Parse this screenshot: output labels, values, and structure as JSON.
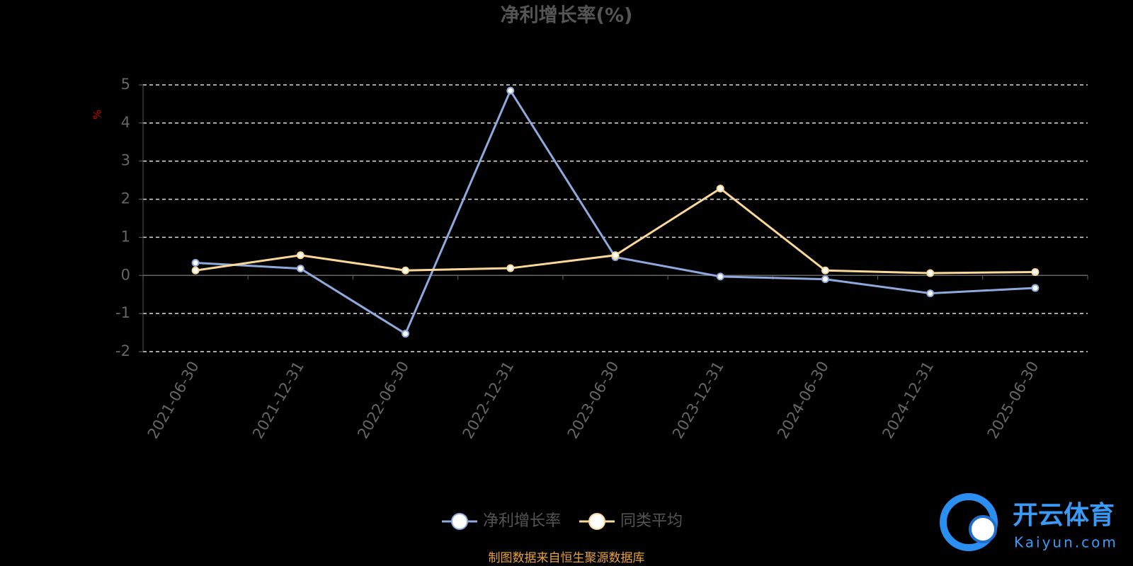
{
  "chart_data": {
    "type": "line",
    "title": "净利增长率(%)",
    "y_label": "%",
    "categories": [
      "2021-06-30",
      "2021-12-31",
      "2022-06-30",
      "2022-12-31",
      "2023-06-30",
      "2023-12-31",
      "2024-06-30",
      "2024-12-31",
      "2025-06-30"
    ],
    "series": [
      {
        "name": "净利增长率",
        "color": "#8fa9dc",
        "values": [
          0.33,
          0.18,
          -1.53,
          4.85,
          0.48,
          -0.03,
          -0.1,
          -0.47,
          -0.33
        ]
      },
      {
        "name": "同类平均",
        "color": "#fbd89a",
        "values": [
          0.13,
          0.53,
          0.13,
          0.19,
          0.53,
          2.28,
          0.13,
          0.06,
          0.09
        ]
      }
    ],
    "ylim": [
      -2,
      5
    ],
    "yticks": [
      -2,
      -1,
      0,
      1,
      2,
      3,
      4,
      5
    ],
    "grid": true,
    "legend": "bottom",
    "footer": "制图数据来自恒生聚源数据库",
    "watermark": {
      "name": "开云体育",
      "site": "Kaiyun.com"
    }
  }
}
